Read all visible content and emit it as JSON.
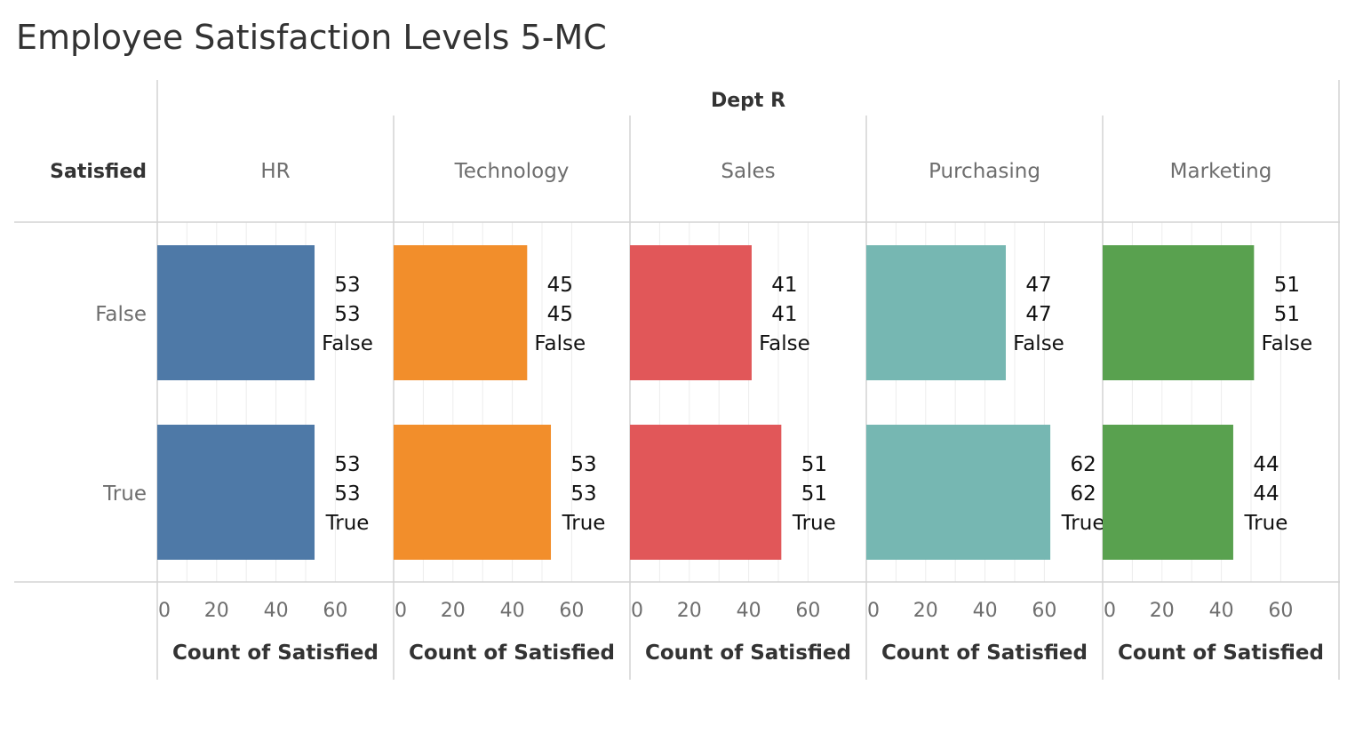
{
  "title": "Employee Satisfaction Levels 5-MC",
  "colors": {
    "HR": "#4e79a7",
    "Technology": "#f28e2b",
    "Sales": "#e15759",
    "Purchasing": "#76b7b2",
    "Marketing": "#59a14f"
  },
  "chart_data": {
    "type": "bar",
    "orientation": "horizontal",
    "title": "Employee Satisfaction Levels 5-MC",
    "column_dimension": "Dept R",
    "row_dimension": "Satisfied",
    "columns": [
      "HR",
      "Technology",
      "Sales",
      "Purchasing",
      "Marketing"
    ],
    "rows": [
      "False",
      "True"
    ],
    "xlabel": "Count of Satisfied",
    "xticks": [
      0,
      20,
      40,
      60
    ],
    "xlim": [
      0,
      70
    ],
    "grid": true,
    "series": [
      {
        "name": "HR",
        "values": [
          53,
          53
        ]
      },
      {
        "name": "Technology",
        "values": [
          45,
          53
        ]
      },
      {
        "name": "Sales",
        "values": [
          41,
          51
        ]
      },
      {
        "name": "Purchasing",
        "values": [
          47,
          62
        ]
      },
      {
        "name": "Marketing",
        "values": [
          51,
          44
        ]
      }
    ]
  }
}
